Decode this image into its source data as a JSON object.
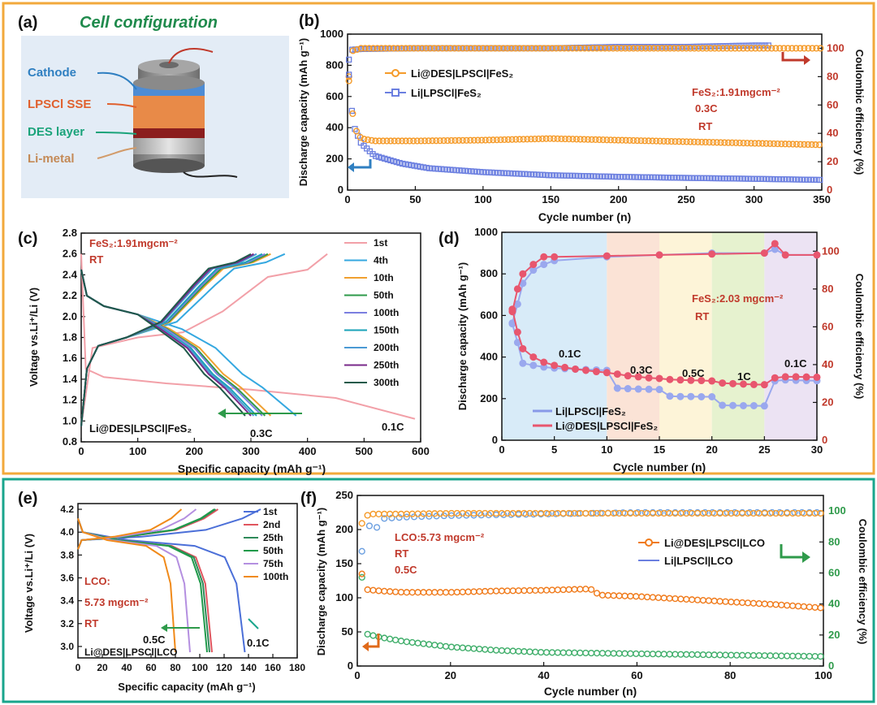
{
  "colors": {
    "frame_top": "#f2a93b",
    "frame_bottom": "#19a58c",
    "orange": "#f59b2a",
    "blue": "#6b7fe0",
    "red": "#c0392b",
    "green": "#2e9a4a",
    "title_green": "#1f8a4c"
  },
  "panel_a": {
    "tag": "(a)",
    "title": "Cell configuration",
    "labels": [
      "Cathode",
      "LPSCl SSE",
      "DES layer",
      "Li-metal"
    ]
  },
  "chart_data": [
    {
      "panel": "(b)",
      "type": "scatter",
      "xlabel": "Cycle number (n)",
      "ylabel": "Discharge capacity (mAh g⁻¹)",
      "y2label": "Coulombic efficiency (%)",
      "xlim": [
        0,
        350
      ],
      "ylim": [
        0,
        1000
      ],
      "y2lim": [
        0,
        110
      ],
      "xticks": [
        "0",
        "50",
        "100",
        "150",
        "200",
        "250",
        "300",
        "350"
      ],
      "yticks": [
        "0",
        "200",
        "400",
        "600",
        "800",
        "1000"
      ],
      "y2ticks": [
        "0",
        "20",
        "40",
        "60",
        "80",
        "100"
      ],
      "annotations": [
        "FeS₂:1.91mgcm⁻²",
        "0.3C",
        "RT"
      ],
      "series": [
        {
          "name": "Li@DES|LPSCl|FeS₂",
          "axis": "left",
          "x": [
            1,
            5,
            10,
            20,
            50,
            100,
            150,
            200,
            250,
            300,
            350
          ],
          "values": [
            700,
            400,
            330,
            315,
            315,
            320,
            330,
            320,
            310,
            300,
            290
          ]
        },
        {
          "name": "Li|LPSCl|FeS₂",
          "axis": "left",
          "x": [
            1,
            3,
            5,
            10,
            20,
            40,
            60,
            100,
            150,
            200,
            250,
            300,
            350
          ],
          "values": [
            740,
            520,
            400,
            300,
            220,
            170,
            140,
            115,
            95,
            85,
            78,
            72,
            65
          ]
        },
        {
          "name": "Li@DES|LPSCl|FeS₂ CE",
          "axis": "right",
          "x": [
            1,
            3,
            10,
            50,
            100,
            150,
            200,
            250,
            300,
            350
          ],
          "values": [
            80,
            98,
            100,
            100,
            100,
            100,
            100,
            100,
            100,
            100
          ]
        },
        {
          "name": "Li|LPSCl|FeS₂ CE",
          "axis": "right",
          "x": [
            1,
            3,
            10,
            50,
            100,
            150,
            200,
            250,
            300,
            312
          ],
          "values": [
            92,
            99,
            99.5,
            100,
            100,
            100,
            101,
            101,
            102,
            102
          ]
        }
      ]
    },
    {
      "panel": "(c)",
      "type": "line",
      "xlabel": "Specific capacity (mAh g⁻¹)",
      "ylabel": "Voltage vs.Li⁺/Li (V)",
      "xlim": [
        0,
        600
      ],
      "ylim": [
        0.8,
        2.8
      ],
      "xticks": [
        "0",
        "100",
        "200",
        "300",
        "400",
        "500",
        "600"
      ],
      "yticks": [
        "0.8",
        "1.0",
        "1.2",
        "1.4",
        "1.6",
        "1.8",
        "2.0",
        "2.2",
        "2.4",
        "2.6",
        "2.8"
      ],
      "annotations": [
        "FeS₂:1.91mgcm⁻²",
        "RT",
        "Li@DES|LPSCl|FeS₂",
        "0.3C",
        "0.1C"
      ],
      "series": [
        {
          "name": "1st",
          "discharge_end": 590,
          "charge_end": 435
        },
        {
          "name": "4th",
          "discharge_end": 380,
          "charge_end": 360
        },
        {
          "name": "10th",
          "discharge_end": 335,
          "charge_end": 335
        },
        {
          "name": "50th",
          "discharge_end": 325,
          "charge_end": 330
        },
        {
          "name": "100th",
          "discharge_end": 320,
          "charge_end": 325
        },
        {
          "name": "150th",
          "discharge_end": 310,
          "charge_end": 320
        },
        {
          "name": "200th",
          "discharge_end": 305,
          "charge_end": 310
        },
        {
          "name": "250th",
          "discharge_end": 300,
          "charge_end": 305
        },
        {
          "name": "300th",
          "discharge_end": 290,
          "charge_end": 300
        }
      ]
    },
    {
      "panel": "(d)",
      "type": "scatter",
      "xlabel": "Cycle number (n)",
      "ylabel": "Discharge capacity (mAh g⁻¹)",
      "y2label": "Coulombic efficiency (%)",
      "xlim": [
        0,
        30
      ],
      "ylim": [
        0,
        1000
      ],
      "y2lim": [
        0,
        110
      ],
      "xticks": [
        "0",
        "5",
        "10",
        "15",
        "20",
        "25",
        "30"
      ],
      "yticks": [
        "0",
        "200",
        "400",
        "600",
        "800",
        "1000"
      ],
      "y2ticks": [
        "0",
        "20",
        "40",
        "60",
        "80",
        "100"
      ],
      "annotations": [
        "FeS₂:2.03 mgcm⁻²",
        "RT"
      ],
      "rate_labels": [
        "0.1C",
        "0.3C",
        "0.5C",
        "1C",
        "0.1C"
      ],
      "series": [
        {
          "name": "Li|LPSCl|FeS₂",
          "axis": "left",
          "x": [
            1,
            1.5,
            2,
            3,
            4,
            5,
            6,
            7,
            8,
            9,
            10,
            11,
            12,
            13,
            14,
            15,
            16,
            17,
            18,
            19,
            20,
            21,
            22,
            23,
            24,
            25,
            26,
            27,
            28,
            29,
            30
          ],
          "values": [
            560,
            470,
            370,
            360,
            352,
            347,
            344,
            342,
            340,
            338,
            336,
            250,
            248,
            246,
            245,
            244,
            212,
            210,
            210,
            209,
            209,
            168,
            167,
            166,
            166,
            165,
            285,
            290,
            288,
            287,
            286
          ]
        },
        {
          "name": "Li@DES|LPSCl|FeS₂",
          "axis": "left",
          "x": [
            1,
            1.5,
            2,
            3,
            4,
            5,
            6,
            7,
            8,
            9,
            10,
            11,
            12,
            13,
            14,
            15,
            16,
            17,
            18,
            19,
            20,
            21,
            22,
            23,
            24,
            25,
            26,
            27,
            28,
            29,
            30
          ],
          "values": [
            630,
            520,
            440,
            400,
            375,
            360,
            350,
            342,
            336,
            330,
            325,
            318,
            310,
            305,
            300,
            297,
            292,
            290,
            288,
            287,
            285,
            275,
            272,
            270,
            268,
            267,
            300,
            305,
            305,
            304,
            303
          ]
        },
        {
          "name": "Li|LPSCl|FeS₂ CE",
          "axis": "right",
          "x": [
            1,
            1.5,
            2,
            3,
            4,
            5,
            10,
            15,
            20,
            25,
            26,
            27,
            30
          ],
          "values": [
            62,
            72,
            83,
            90,
            93,
            95,
            97,
            98,
            99,
            99,
            101,
            98,
            98
          ]
        },
        {
          "name": "Li@DES|LPSCl|FeS₂ CE",
          "axis": "right",
          "x": [
            1,
            1.5,
            2,
            3,
            4,
            5,
            10,
            15,
            20,
            25,
            26,
            27,
            30
          ],
          "values": [
            68,
            80,
            88,
            93,
            97,
            97,
            97.5,
            98,
            98.5,
            99,
            104,
            98,
            98
          ]
        }
      ]
    },
    {
      "panel": "(e)",
      "type": "line",
      "xlabel": "Specific capacity (mAh g⁻¹)",
      "ylabel": "Voltage vs.Li⁺/Li (V)",
      "xlim": [
        0,
        180
      ],
      "ylim": [
        2.9,
        4.25
      ],
      "xticks": [
        "0",
        "20",
        "40",
        "60",
        "80",
        "100",
        "120",
        "140",
        "160",
        "180"
      ],
      "yticks": [
        "3.0",
        "3.2",
        "3.4",
        "3.6",
        "3.8",
        "4.0",
        "4.2"
      ],
      "annotations": [
        "LCO:",
        "5.73 mgcm⁻²",
        "RT",
        "0.5C",
        "0.1C",
        "Li@DES|LPSCl|LCO"
      ],
      "series": [
        {
          "name": "1st",
          "charge_end": 150,
          "discharge_end": 137
        },
        {
          "name": "2nd",
          "charge_end": 115,
          "discharge_end": 110
        },
        {
          "name": "25th",
          "charge_end": 113,
          "discharge_end": 108
        },
        {
          "name": "50th",
          "charge_end": 112,
          "discharge_end": 106
        },
        {
          "name": "75th",
          "charge_end": 97,
          "discharge_end": 92
        },
        {
          "name": "100th",
          "charge_end": 85,
          "discharge_end": 80
        }
      ]
    },
    {
      "panel": "(f)",
      "type": "scatter",
      "xlabel": "Cycle number (n)",
      "ylabel": "Discharge capacity (mAh g⁻¹)",
      "y2label": "Coulombic efficiency (%)",
      "xlim": [
        0,
        100
      ],
      "ylim": [
        0,
        250
      ],
      "y2lim": [
        0,
        110
      ],
      "xticks": [
        "0",
        "20",
        "40",
        "60",
        "80",
        "100"
      ],
      "yticks": [
        "0",
        "50",
        "100",
        "150",
        "200",
        "250"
      ],
      "y2ticks": [
        "0",
        "20",
        "40",
        "60",
        "80",
        "100"
      ],
      "annotations": [
        "LCO:5.73 mgcm⁻²",
        "RT",
        "0.5C"
      ],
      "series": [
        {
          "name": "Li@DES|LPSCl|LCO",
          "axis": "left",
          "x": [
            1,
            2,
            5,
            10,
            20,
            30,
            40,
            50,
            52,
            60,
            70,
            80,
            90,
            100
          ],
          "values": [
            135,
            112,
            110,
            108,
            108,
            110,
            111,
            113,
            104,
            102,
            98,
            94,
            90,
            85
          ]
        },
        {
          "name": "Li|LPSCl|LCO",
          "axis": "left",
          "x": [
            1,
            2,
            5,
            10,
            20,
            30,
            40,
            50,
            60,
            70,
            80,
            90,
            100
          ],
          "values": [
            130,
            47,
            42,
            36,
            28,
            23,
            20,
            19,
            18,
            17,
            16,
            15,
            14
          ]
        },
        {
          "name": "Li@DES|LPSCl|LCO CE",
          "axis": "right",
          "x": [
            1,
            2,
            3,
            5,
            10,
            20,
            40,
            60,
            80,
            100
          ],
          "values": [
            92,
            97,
            98,
            98,
            98,
            98.5,
            98.5,
            98.5,
            98.5,
            98.5
          ]
        },
        {
          "name": "Li|LPSCl|LCO CE",
          "axis": "right",
          "x": [
            1,
            2,
            3,
            4,
            5,
            10,
            20,
            40,
            60,
            80,
            100
          ],
          "values": [
            74,
            88,
            92,
            88,
            95,
            96,
            97,
            98,
            99,
            99,
            99
          ]
        }
      ]
    }
  ]
}
